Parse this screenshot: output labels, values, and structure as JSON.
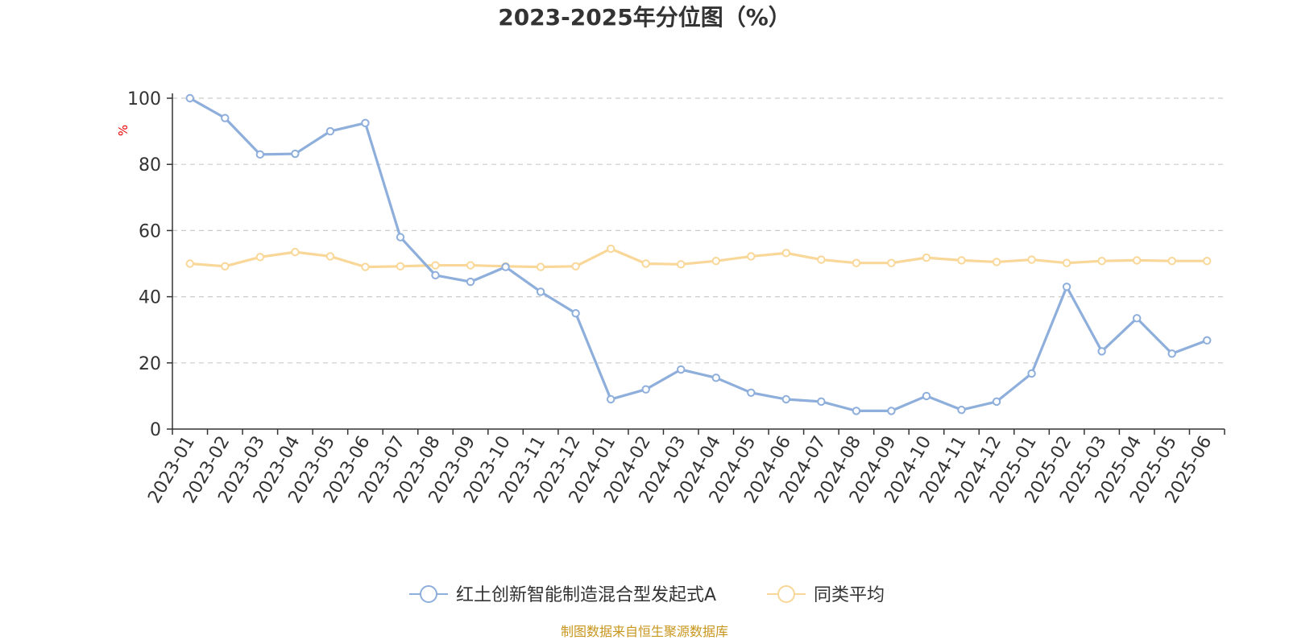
{
  "title": "2023-2025年分位图（%）",
  "source": "制图数据来自恒生聚源数据库",
  "chart_data": {
    "type": "line",
    "title": "2023-2025年分位图（%）",
    "ylabel": "%",
    "ylim": [
      0,
      100
    ],
    "yticks": [
      0,
      20,
      40,
      60,
      80,
      100
    ],
    "grid": true,
    "legend_position": "bottom-center",
    "categories": [
      "2023-01",
      "2023-02",
      "2023-03",
      "2023-04",
      "2023-05",
      "2023-06",
      "2023-07",
      "2023-08",
      "2023-09",
      "2023-10",
      "2023-11",
      "2023-12",
      "2024-01",
      "2024-02",
      "2024-03",
      "2024-04",
      "2024-05",
      "2024-06",
      "2024-07",
      "2024-08",
      "2024-09",
      "2024-10",
      "2024-11",
      "2024-12",
      "2025-01",
      "2025-02",
      "2025-03",
      "2025-04",
      "2025-05",
      "2025-06"
    ],
    "series": [
      {
        "name": "红土创新智能制造混合型发起式A",
        "color": "#8eaedb",
        "values": [
          100,
          94,
          83,
          83.2,
          90,
          92.5,
          58,
          46.5,
          44.5,
          49,
          41.5,
          35,
          9,
          12,
          18,
          15.5,
          11,
          9,
          8.3,
          5.5,
          5.5,
          10,
          5.8,
          8.3,
          16.8,
          43,
          23.5,
          33.5,
          22.8,
          26.8
        ]
      },
      {
        "name": "同类平均",
        "color": "#f9d798",
        "values": [
          50,
          49.2,
          52,
          53.5,
          52.2,
          49,
          49.2,
          49.5,
          49.5,
          49.2,
          49,
          49.2,
          54.5,
          50,
          49.8,
          50.8,
          52.2,
          53.2,
          51.2,
          50.2,
          50.2,
          51.8,
          51,
          50.5,
          51.2,
          50.2,
          50.8,
          51,
          50.8,
          50.8
        ]
      }
    ]
  }
}
